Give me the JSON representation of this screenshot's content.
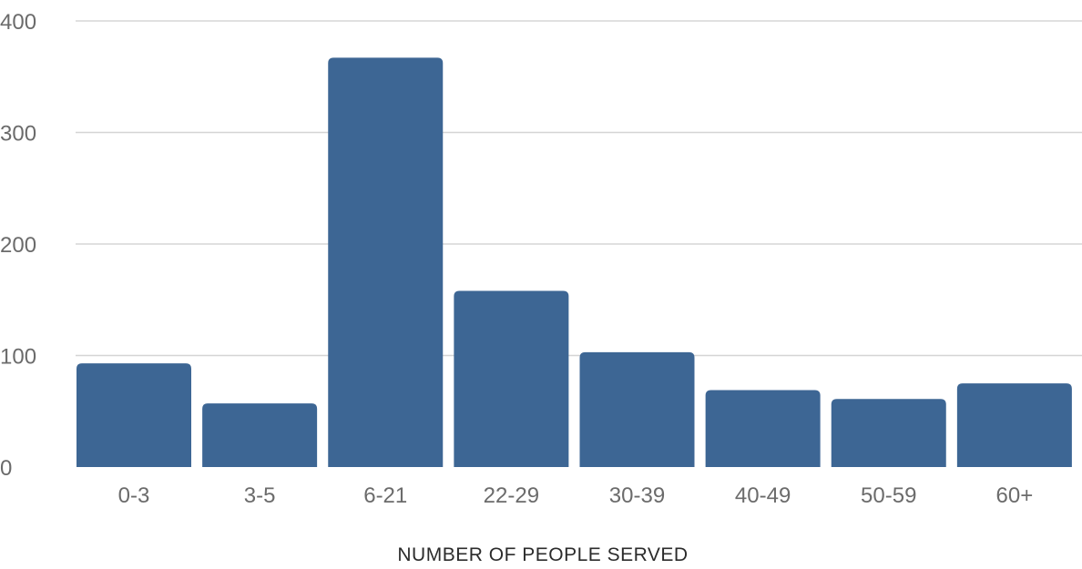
{
  "chart_data": {
    "type": "bar",
    "title": "",
    "xlabel": "NUMBER OF PEOPLE SERVED",
    "ylabel": "",
    "categories": [
      "0-3",
      "3-5",
      "6-21",
      "22-29",
      "30-39",
      "40-49",
      "50-59",
      "60+"
    ],
    "values": [
      93,
      57,
      367,
      158,
      103,
      69,
      61,
      75
    ],
    "ylim": [
      0,
      400
    ],
    "yticks": [
      0,
      100,
      200,
      300,
      400
    ],
    "grid": true,
    "legend": "none",
    "colors": {
      "bar": "#3d6694",
      "grid": "#d5d5d5",
      "tick_label": "#6b6b6b",
      "axis_title": "#2b2b2b"
    }
  }
}
